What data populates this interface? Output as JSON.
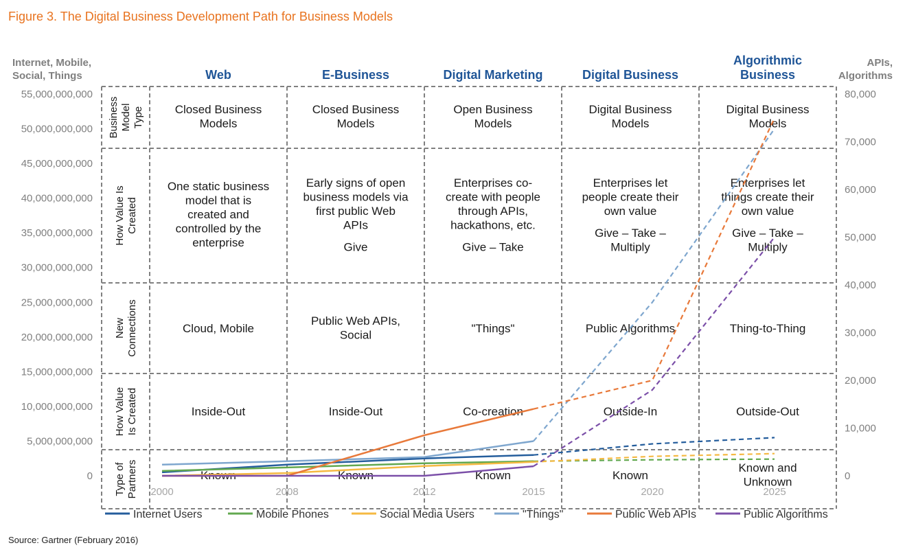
{
  "figure_title": "Figure 3. The Digital Business Development Path for Business Models",
  "source": "Source: Gartner (February 2016)",
  "colors": {
    "title": "#e8731f",
    "stage_header": "#1f5597",
    "grid": "#808080"
  },
  "chart_data": {
    "type": "line",
    "title": "Figure 3. The Digital Business Development Path for Business Models",
    "left_axis_label": [
      "Internet, Mobile,",
      "Social, Things"
    ],
    "right_axis_label": [
      "APIs,",
      "Algorithms"
    ],
    "left_ticks": [
      "55,000,000,000",
      "50,000,000,000",
      "45,000,000,000",
      "40,000,000,000",
      "35,000,000,000",
      "30,000,000,000",
      "25,000,000,000",
      "20,000,000,000",
      "15,000,000,000",
      "10,000,000,000",
      "5,000,000,000",
      "0"
    ],
    "right_ticks": [
      "80,000",
      "70,000",
      "60,000",
      "50,000",
      "40,000",
      "30,000",
      "20,000",
      "10,000",
      "0"
    ],
    "ylim_left": [
      0,
      55000000000
    ],
    "ylim_right": [
      0,
      80000
    ],
    "x_ticks": [
      "2000",
      "2008",
      "2012",
      "2015",
      "2020",
      "2025"
    ],
    "x_tick_values": [
      2000,
      2008,
      2012,
      2015,
      2020,
      2025
    ],
    "grid": true,
    "legend_position": "bottom",
    "stages": [
      "Web",
      "E-Business",
      "Digital Marketing",
      "Digital Business",
      "Algorithmic Business"
    ],
    "row_labels": [
      [
        "Business",
        "Model",
        "Type"
      ],
      [
        "How Value Is",
        "Created"
      ],
      [
        "New",
        "Connections"
      ],
      [
        "How Value",
        "Is Created"
      ],
      [
        "Type of",
        "Partners"
      ]
    ],
    "cells": [
      [
        [
          "Closed Business",
          "Models"
        ],
        [
          "Closed Business",
          "Models"
        ],
        [
          "Open Business",
          "Models"
        ],
        [
          "Digital Business",
          "Models"
        ],
        [
          "Digital Business",
          "Models"
        ]
      ],
      [
        [
          "One static business",
          "model that is",
          "created and",
          "controlled by the",
          "enterprise"
        ],
        [
          "Early signs of open",
          "business models via",
          "first public Web",
          "APIs",
          "",
          "Give"
        ],
        [
          "Enterprises co-",
          "create with people",
          "through APIs,",
          "hackathons, etc.",
          "",
          "Give – Take"
        ],
        [
          "Enterprises let",
          "people create their",
          "own value",
          "",
          "Give – Take –",
          "Multiply"
        ],
        [
          "Enterprises let",
          "things create their",
          "own value",
          "",
          "Give – Take –",
          "Multiply"
        ]
      ],
      [
        [
          "Cloud, Mobile"
        ],
        [
          "Public Web APIs,",
          "Social"
        ],
        [
          "\"Things\""
        ],
        [
          "Public Algorithms"
        ],
        [
          "Thing-to-Thing"
        ]
      ],
      [
        [
          "Inside-Out"
        ],
        [
          "Inside-Out"
        ],
        [
          "Co-creation"
        ],
        [
          "Outside-In"
        ],
        [
          "Outside-Out"
        ]
      ],
      [
        [
          "Known"
        ],
        [
          "Known"
        ],
        [
          "Known"
        ],
        [
          "Known"
        ],
        [
          "Known and",
          "Unknown"
        ]
      ]
    ],
    "series": [
      {
        "name": "Internet Users",
        "axis": "left",
        "color": "#245d9c",
        "solid": [
          [
            2000,
            500000000
          ],
          [
            2008,
            1600000000
          ],
          [
            2012,
            2500000000
          ],
          [
            2015,
            3000000000
          ]
        ],
        "dashed": [
          [
            2015,
            3000000000
          ],
          [
            2020,
            4600000000
          ],
          [
            2025,
            5500000000
          ]
        ]
      },
      {
        "name": "Mobile Phones",
        "axis": "left",
        "color": "#62a84f",
        "solid": [
          [
            2000,
            700000000
          ],
          [
            2008,
            1200000000
          ],
          [
            2012,
            1800000000
          ],
          [
            2015,
            2100000000
          ]
        ],
        "dashed": [
          [
            2015,
            2100000000
          ],
          [
            2020,
            2300000000
          ],
          [
            2025,
            2400000000
          ]
        ]
      },
      {
        "name": "Social Media Users",
        "axis": "left",
        "color": "#f5b942",
        "solid": [
          [
            2000,
            0
          ],
          [
            2008,
            400000000
          ],
          [
            2012,
            1400000000
          ],
          [
            2015,
            2000000000
          ]
        ],
        "dashed": [
          [
            2015,
            2000000000
          ],
          [
            2020,
            2800000000
          ],
          [
            2025,
            3200000000
          ]
        ]
      },
      {
        "name": "\"Things\"",
        "axis": "left",
        "color": "#7ea6ce",
        "solid": [
          [
            2000,
            1600000000
          ],
          [
            2008,
            2100000000
          ],
          [
            2012,
            2700000000
          ],
          [
            2015,
            5000000000
          ]
        ],
        "dashed": [
          [
            2015,
            5000000000
          ],
          [
            2020,
            25000000000
          ],
          [
            2025,
            50000000000
          ]
        ]
      },
      {
        "name": "Public Web APIs",
        "axis": "right",
        "color": "#e8793a",
        "solid": [
          [
            2000,
            0
          ],
          [
            2008,
            0
          ],
          [
            2012,
            8500
          ],
          [
            2015,
            14000
          ]
        ],
        "dashed": [
          [
            2015,
            14000
          ],
          [
            2020,
            20000
          ],
          [
            2025,
            75000
          ]
        ]
      },
      {
        "name": "Public Algorithms",
        "axis": "right",
        "color": "#7b4fa8",
        "solid": [
          [
            2000,
            0
          ],
          [
            2008,
            0
          ],
          [
            2012,
            0
          ],
          [
            2015,
            2000
          ]
        ],
        "dashed": [
          [
            2015,
            2000
          ],
          [
            2020,
            18000
          ],
          [
            2025,
            50000
          ]
        ]
      }
    ]
  }
}
